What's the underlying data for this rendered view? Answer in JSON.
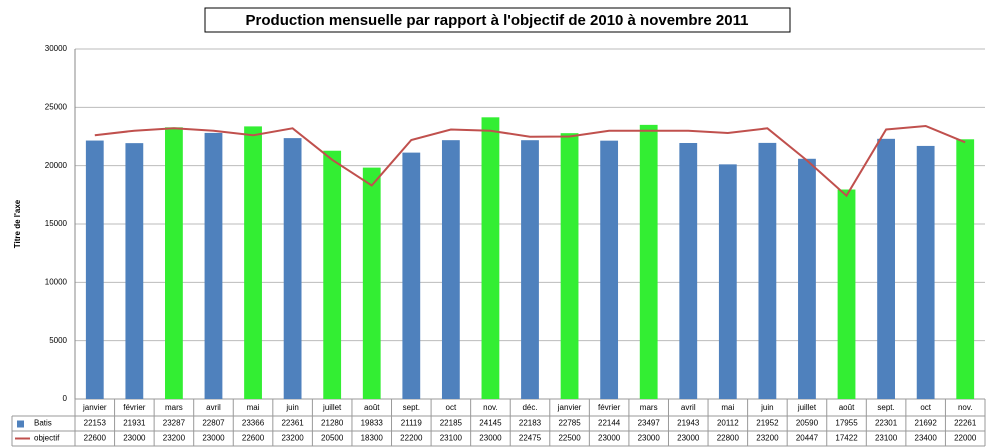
{
  "chart_data": {
    "type": "bar",
    "title": "Production mensuelle par rapport à l'objectif de 2010 à novembre 2011",
    "y_label": "Titre de l'axe",
    "categories": [
      "janvier",
      "février",
      "mars",
      "avril",
      "mai",
      "juin",
      "juillet",
      "août",
      "sept.",
      "oct",
      "nov.",
      "déc.",
      "janvier",
      "février",
      "mars",
      "avril",
      "mai",
      "juin",
      "juillet",
      "août",
      "sept.",
      "oct",
      "nov."
    ],
    "series": [
      {
        "name": "Batis",
        "type": "bar",
        "color": "#4f81bd",
        "colors": [
          "#4f81bd",
          "#4f81bd",
          "#33ee33",
          "#4f81bd",
          "#33ee33",
          "#4f81bd",
          "#33ee33",
          "#33ee33",
          "#4f81bd",
          "#4f81bd",
          "#33ee33",
          "#4f81bd",
          "#33ee33",
          "#4f81bd",
          "#33ee33",
          "#4f81bd",
          "#4f81bd",
          "#4f81bd",
          "#4f81bd",
          "#33ee33",
          "#4f81bd",
          "#4f81bd",
          "#33ee33"
        ],
        "values": [
          22153,
          21931,
          23287,
          22807,
          23366,
          22361,
          21280,
          19833,
          21119,
          22185,
          24145,
          22183,
          22785,
          22144,
          23497,
          21943,
          20112,
          21952,
          20590,
          17955,
          22301,
          21692,
          22261
        ]
      },
      {
        "name": "objectif",
        "type": "line",
        "color": "#c0504d",
        "values": [
          22600,
          23000,
          23200,
          23000,
          22600,
          23200,
          20500,
          18300,
          22200,
          23100,
          23000,
          22475,
          22500,
          23000,
          23000,
          23000,
          22800,
          23200,
          20447,
          17422,
          23100,
          23400,
          22000
        ]
      }
    ],
    "ylim": [
      0,
      30000
    ],
    "yticks": [
      0,
      5000,
      10000,
      15000,
      20000,
      25000,
      30000
    ],
    "grid": true
  }
}
